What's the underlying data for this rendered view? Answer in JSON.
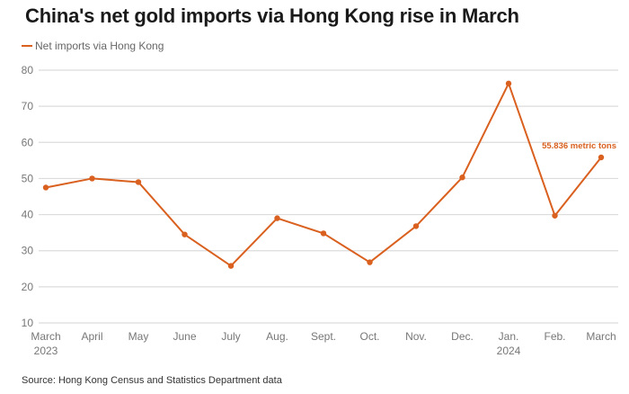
{
  "chart_data": {
    "type": "line",
    "title": "China's net gold imports via Hong Kong rise in March",
    "xlabel": "",
    "ylabel": "",
    "ylim": [
      10,
      80
    ],
    "yticks": [
      10,
      20,
      30,
      40,
      50,
      60,
      70,
      80
    ],
    "grid": true,
    "legend_position": "top-left",
    "categories": [
      "March",
      "April",
      "May",
      "June",
      "July",
      "Aug.",
      "Sept.",
      "Oct.",
      "Nov.",
      "Dec.",
      "Jan.",
      "Feb.",
      "March"
    ],
    "category_sublabels": [
      "2023",
      "",
      "",
      "",
      "",
      "",
      "",
      "",
      "",
      "",
      "2024",
      "",
      ""
    ],
    "series": [
      {
        "name": "Net imports via Hong Kong",
        "color": "#d9601f",
        "values": [
          47.5,
          50.0,
          49.0,
          34.5,
          25.8,
          39.0,
          34.8,
          26.8,
          36.8,
          50.3,
          76.3,
          39.7,
          55.836
        ]
      }
    ],
    "annotations": [
      {
        "index": 12,
        "text": "55.836 metric tons"
      }
    ]
  },
  "header": {
    "title": "China's net gold imports via Hong Kong rise in March",
    "legend_label": "Net imports via Hong Kong"
  },
  "footer": {
    "source": "Source: Hong Kong Census and Statistics Department data"
  }
}
